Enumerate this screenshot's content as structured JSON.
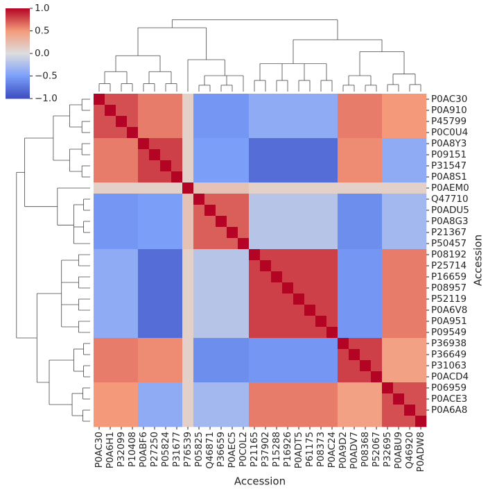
{
  "chart_data": {
    "type": "heatmap",
    "colormap": "coolwarm",
    "xlabel": "Accession",
    "ylabel": "Accession",
    "x_categories": [
      "P0AC30",
      "P0A6H1",
      "P32099",
      "P10408",
      "P0ABF6",
      "P27250",
      "P05824",
      "P31677",
      "P76539",
      "P05825",
      "Q46871",
      "P36659",
      "P0AEC5",
      "P0C0L2",
      "P21165",
      "P37902",
      "P15288",
      "P16926",
      "P0ADT5",
      "P61175",
      "P08373",
      "P0AC24",
      "P0A9D2",
      "P0ADV7",
      "P08368",
      "P52067",
      "P32695",
      "P0ABU9",
      "Q46920",
      "P0ADW8"
    ],
    "y_categories": [
      "P0AC30",
      "P0A910",
      "P45799",
      "P0C0U4",
      "P0A8Y3",
      "P09151",
      "P31547",
      "P0A8S1",
      "P0AEM0",
      "Q47710",
      "P0ADU5",
      "P0A8G3",
      "P21367",
      "P50457",
      "P08192",
      "P25714",
      "P16659",
      "P08957",
      "P52119",
      "P0A6V8",
      "P0A951",
      "P09549",
      "P36938",
      "P36649",
      "P31063",
      "P0ACD4",
      "P06959",
      "P0ACE3",
      "P0A6A8",
      null
    ],
    "clim": [
      -1,
      1
    ],
    "colorbar_ticks": [
      {
        "value": 1,
        "label": "1.0"
      },
      0.5,
      {
        "value": 0,
        "label": "0.0"
      },
      {
        "value": -0.5,
        "label": "−0.5"
      },
      {
        "value": -1,
        "label": "−1.0"
      }
    ],
    "values": [
      [
        1,
        0.75,
        0.75,
        0.75,
        0.6,
        0.6,
        0.6,
        0.6,
        0.1,
        -0.55,
        -0.55,
        -0.55,
        -0.55,
        -0.55,
        -0.4,
        -0.4,
        -0.4,
        -0.4,
        -0.4,
        -0.4,
        -0.4,
        -0.4,
        0.6,
        0.6,
        0.6,
        0.6,
        0.5,
        0.5,
        0.5,
        0.5
      ],
      [
        0.75,
        1,
        0.75,
        0.75,
        0.6,
        0.6,
        0.6,
        0.6,
        0.1,
        -0.55,
        -0.55,
        -0.55,
        -0.55,
        -0.55,
        -0.4,
        -0.4,
        -0.4,
        -0.4,
        -0.4,
        -0.4,
        -0.4,
        -0.4,
        0.6,
        0.6,
        0.6,
        0.6,
        0.5,
        0.5,
        0.5,
        0.5
      ],
      [
        0.75,
        0.75,
        1,
        0.75,
        0.6,
        0.6,
        0.6,
        0.6,
        0.1,
        -0.55,
        -0.55,
        -0.55,
        -0.55,
        -0.55,
        -0.4,
        -0.4,
        -0.4,
        -0.4,
        -0.4,
        -0.4,
        -0.4,
        -0.4,
        0.6,
        0.6,
        0.6,
        0.6,
        0.5,
        0.5,
        0.5,
        0.5
      ],
      [
        0.75,
        0.75,
        0.75,
        1,
        0.6,
        0.6,
        0.6,
        0.6,
        0.1,
        -0.55,
        -0.55,
        -0.55,
        -0.55,
        -0.55,
        -0.4,
        -0.4,
        -0.4,
        -0.4,
        -0.4,
        -0.4,
        -0.4,
        -0.4,
        0.6,
        0.6,
        0.6,
        0.6,
        0.5,
        0.5,
        0.5,
        0.5
      ],
      [
        0.6,
        0.6,
        0.6,
        0.6,
        1,
        0.8,
        0.8,
        0.8,
        0.1,
        -0.5,
        -0.5,
        -0.5,
        -0.5,
        -0.5,
        -0.8,
        -0.8,
        -0.8,
        -0.8,
        -0.8,
        -0.8,
        -0.8,
        -0.8,
        0.55,
        0.55,
        0.55,
        0.55,
        -0.4,
        -0.4,
        -0.4,
        -0.4
      ],
      [
        0.6,
        0.6,
        0.6,
        0.6,
        0.8,
        1,
        0.8,
        0.8,
        0.1,
        -0.5,
        -0.5,
        -0.5,
        -0.5,
        -0.5,
        -0.8,
        -0.8,
        -0.8,
        -0.8,
        -0.8,
        -0.8,
        -0.8,
        -0.8,
        0.55,
        0.55,
        0.55,
        0.55,
        -0.4,
        -0.4,
        -0.4,
        -0.4
      ],
      [
        0.6,
        0.6,
        0.6,
        0.6,
        0.8,
        0.8,
        1,
        0.8,
        0.1,
        -0.5,
        -0.5,
        -0.5,
        -0.5,
        -0.5,
        -0.8,
        -0.8,
        -0.8,
        -0.8,
        -0.8,
        -0.8,
        -0.8,
        -0.8,
        0.55,
        0.55,
        0.55,
        0.55,
        -0.4,
        -0.4,
        -0.4,
        -0.4
      ],
      [
        0.6,
        0.6,
        0.6,
        0.6,
        0.8,
        0.8,
        0.8,
        1,
        0.1,
        -0.5,
        -0.5,
        -0.5,
        -0.5,
        -0.5,
        -0.8,
        -0.8,
        -0.8,
        -0.8,
        -0.8,
        -0.8,
        -0.8,
        -0.8,
        0.55,
        0.55,
        0.55,
        0.55,
        -0.4,
        -0.4,
        -0.4,
        -0.4
      ],
      [
        0.1,
        0.1,
        0.1,
        0.1,
        0.1,
        0.1,
        0.1,
        0.1,
        1,
        0.2,
        0.2,
        0.2,
        0.2,
        0.2,
        0.1,
        0.1,
        0.1,
        0.1,
        0.1,
        0.1,
        0.1,
        0.1,
        0.1,
        0.1,
        0.1,
        0.1,
        0.1,
        0.1,
        0.1,
        0.1
      ],
      [
        -0.55,
        -0.55,
        -0.55,
        -0.55,
        -0.5,
        -0.5,
        -0.5,
        -0.5,
        0.2,
        1,
        0.7,
        0.7,
        0.7,
        0.7,
        -0.2,
        -0.2,
        -0.2,
        -0.2,
        -0.2,
        -0.2,
        -0.2,
        -0.2,
        -0.6,
        -0.6,
        -0.6,
        -0.6,
        -0.3,
        -0.3,
        -0.3,
        -0.3
      ],
      [
        -0.55,
        -0.55,
        -0.55,
        -0.55,
        -0.5,
        -0.5,
        -0.5,
        -0.5,
        0.2,
        0.7,
        1,
        0.7,
        0.7,
        0.7,
        -0.2,
        -0.2,
        -0.2,
        -0.2,
        -0.2,
        -0.2,
        -0.2,
        -0.2,
        -0.6,
        -0.6,
        -0.6,
        -0.6,
        -0.3,
        -0.3,
        -0.3,
        -0.3
      ],
      [
        -0.55,
        -0.55,
        -0.55,
        -0.55,
        -0.5,
        -0.5,
        -0.5,
        -0.5,
        0.2,
        0.7,
        0.7,
        1,
        0.7,
        0.7,
        -0.2,
        -0.2,
        -0.2,
        -0.2,
        -0.2,
        -0.2,
        -0.2,
        -0.2,
        -0.6,
        -0.6,
        -0.6,
        -0.6,
        -0.3,
        -0.3,
        -0.3,
        -0.3
      ],
      [
        -0.55,
        -0.55,
        -0.55,
        -0.55,
        -0.5,
        -0.5,
        -0.5,
        -0.5,
        0.2,
        0.7,
        0.7,
        0.7,
        1,
        0.7,
        -0.2,
        -0.2,
        -0.2,
        -0.2,
        -0.2,
        -0.2,
        -0.2,
        -0.2,
        -0.6,
        -0.6,
        -0.6,
        -0.6,
        -0.3,
        -0.3,
        -0.3,
        -0.3
      ],
      [
        -0.55,
        -0.55,
        -0.55,
        -0.55,
        -0.5,
        -0.5,
        -0.5,
        -0.5,
        0.2,
        0.7,
        0.7,
        0.7,
        0.7,
        1,
        -0.2,
        -0.2,
        -0.2,
        -0.2,
        -0.2,
        -0.2,
        -0.2,
        -0.2,
        -0.6,
        -0.6,
        -0.6,
        -0.6,
        -0.3,
        -0.3,
        -0.3,
        -0.3
      ],
      [
        -0.4,
        -0.4,
        -0.4,
        -0.4,
        -0.8,
        -0.8,
        -0.8,
        -0.8,
        0.1,
        -0.2,
        -0.2,
        -0.2,
        -0.2,
        -0.2,
        1,
        0.8,
        0.8,
        0.8,
        0.8,
        0.8,
        0.8,
        0.8,
        -0.55,
        -0.55,
        -0.55,
        -0.55,
        0.6,
        0.6,
        0.6,
        0.6
      ],
      [
        -0.4,
        -0.4,
        -0.4,
        -0.4,
        -0.8,
        -0.8,
        -0.8,
        -0.8,
        0.1,
        -0.2,
        -0.2,
        -0.2,
        -0.2,
        -0.2,
        0.8,
        1,
        0.8,
        0.8,
        0.8,
        0.8,
        0.8,
        0.8,
        -0.55,
        -0.55,
        -0.55,
        -0.55,
        0.6,
        0.6,
        0.6,
        0.6
      ],
      [
        -0.4,
        -0.4,
        -0.4,
        -0.4,
        -0.8,
        -0.8,
        -0.8,
        -0.8,
        0.1,
        -0.2,
        -0.2,
        -0.2,
        -0.2,
        -0.2,
        0.8,
        0.8,
        1,
        0.8,
        0.8,
        0.8,
        0.8,
        0.8,
        -0.55,
        -0.55,
        -0.55,
        -0.55,
        0.6,
        0.6,
        0.6,
        0.6
      ],
      [
        -0.4,
        -0.4,
        -0.4,
        -0.4,
        -0.8,
        -0.8,
        -0.8,
        -0.8,
        0.1,
        -0.2,
        -0.2,
        -0.2,
        -0.2,
        -0.2,
        0.8,
        0.8,
        0.8,
        1,
        0.8,
        0.8,
        0.8,
        0.8,
        -0.55,
        -0.55,
        -0.55,
        -0.55,
        0.6,
        0.6,
        0.6,
        0.6
      ],
      [
        -0.4,
        -0.4,
        -0.4,
        -0.4,
        -0.8,
        -0.8,
        -0.8,
        -0.8,
        0.1,
        -0.2,
        -0.2,
        -0.2,
        -0.2,
        -0.2,
        0.8,
        0.8,
        0.8,
        0.8,
        1,
        0.8,
        0.8,
        0.8,
        -0.55,
        -0.55,
        -0.55,
        -0.55,
        0.6,
        0.6,
        0.6,
        0.6
      ],
      [
        -0.4,
        -0.4,
        -0.4,
        -0.4,
        -0.8,
        -0.8,
        -0.8,
        -0.8,
        0.1,
        -0.2,
        -0.2,
        -0.2,
        -0.2,
        -0.2,
        0.8,
        0.8,
        0.8,
        0.8,
        0.8,
        1,
        0.8,
        0.8,
        -0.55,
        -0.55,
        -0.55,
        -0.55,
        0.6,
        0.6,
        0.6,
        0.6
      ],
      [
        -0.4,
        -0.4,
        -0.4,
        -0.4,
        -0.8,
        -0.8,
        -0.8,
        -0.8,
        0.1,
        -0.2,
        -0.2,
        -0.2,
        -0.2,
        -0.2,
        0.8,
        0.8,
        0.8,
        0.8,
        0.8,
        0.8,
        1,
        0.8,
        -0.55,
        -0.55,
        -0.55,
        -0.55,
        0.6,
        0.6,
        0.6,
        0.6
      ],
      [
        -0.4,
        -0.4,
        -0.4,
        -0.4,
        -0.8,
        -0.8,
        -0.8,
        -0.8,
        0.1,
        -0.2,
        -0.2,
        -0.2,
        -0.2,
        -0.2,
        0.8,
        0.8,
        0.8,
        0.8,
        0.8,
        0.8,
        0.8,
        1,
        -0.55,
        -0.55,
        -0.55,
        -0.55,
        0.6,
        0.6,
        0.6,
        0.6
      ],
      [
        0.6,
        0.6,
        0.6,
        0.6,
        0.55,
        0.55,
        0.55,
        0.55,
        0.1,
        -0.6,
        -0.6,
        -0.6,
        -0.6,
        -0.6,
        -0.55,
        -0.55,
        -0.55,
        -0.55,
        -0.55,
        -0.55,
        -0.55,
        -0.55,
        1,
        0.8,
        0.8,
        0.8,
        0.45,
        0.45,
        0.45,
        0.45
      ],
      [
        0.6,
        0.6,
        0.6,
        0.6,
        0.55,
        0.55,
        0.55,
        0.55,
        0.1,
        -0.6,
        -0.6,
        -0.6,
        -0.6,
        -0.6,
        -0.55,
        -0.55,
        -0.55,
        -0.55,
        -0.55,
        -0.55,
        -0.55,
        -0.55,
        0.8,
        1,
        0.8,
        0.8,
        0.45,
        0.45,
        0.45,
        0.45
      ],
      [
        0.6,
        0.6,
        0.6,
        0.6,
        0.55,
        0.55,
        0.55,
        0.55,
        0.1,
        -0.6,
        -0.6,
        -0.6,
        -0.6,
        -0.6,
        -0.55,
        -0.55,
        -0.55,
        -0.55,
        -0.55,
        -0.55,
        -0.55,
        -0.55,
        0.8,
        0.8,
        1,
        0.8,
        0.45,
        0.45,
        0.45,
        0.45
      ],
      [
        0.6,
        0.6,
        0.6,
        0.6,
        0.55,
        0.55,
        0.55,
        0.55,
        0.1,
        -0.6,
        -0.6,
        -0.6,
        -0.6,
        -0.6,
        -0.55,
        -0.55,
        -0.55,
        -0.55,
        -0.55,
        -0.55,
        -0.55,
        -0.55,
        0.8,
        0.8,
        0.8,
        1,
        0.45,
        0.45,
        0.45,
        0.45
      ],
      [
        0.5,
        0.5,
        0.5,
        0.5,
        -0.4,
        -0.4,
        -0.4,
        -0.4,
        0.1,
        -0.3,
        -0.3,
        -0.3,
        -0.3,
        -0.3,
        0.6,
        0.6,
        0.6,
        0.6,
        0.6,
        0.6,
        0.6,
        0.6,
        0.45,
        0.45,
        0.45,
        0.45,
        1,
        0.75,
        0.75,
        0.75
      ],
      [
        0.5,
        0.5,
        0.5,
        0.5,
        -0.4,
        -0.4,
        -0.4,
        -0.4,
        0.1,
        -0.3,
        -0.3,
        -0.3,
        -0.3,
        -0.3,
        0.6,
        0.6,
        0.6,
        0.6,
        0.6,
        0.6,
        0.6,
        0.6,
        0.45,
        0.45,
        0.45,
        0.45,
        0.75,
        1,
        0.75,
        0.75
      ],
      [
        0.5,
        0.5,
        0.5,
        0.5,
        -0.4,
        -0.4,
        -0.4,
        -0.4,
        0.1,
        -0.3,
        -0.3,
        -0.3,
        -0.3,
        -0.3,
        0.6,
        0.6,
        0.6,
        0.6,
        0.6,
        0.6,
        0.6,
        0.6,
        0.45,
        0.45,
        0.45,
        0.45,
        0.75,
        0.75,
        1,
        0.75
      ],
      [
        0.5,
        0.5,
        0.5,
        0.5,
        -0.4,
        -0.4,
        -0.4,
        -0.4,
        0.1,
        -0.3,
        -0.3,
        -0.3,
        -0.3,
        -0.3,
        0.6,
        0.6,
        0.6,
        0.6,
        0.6,
        0.6,
        0.6,
        0.6,
        0.45,
        0.45,
        0.45,
        0.45,
        0.75,
        0.75,
        0.75,
        1
      ]
    ]
  }
}
